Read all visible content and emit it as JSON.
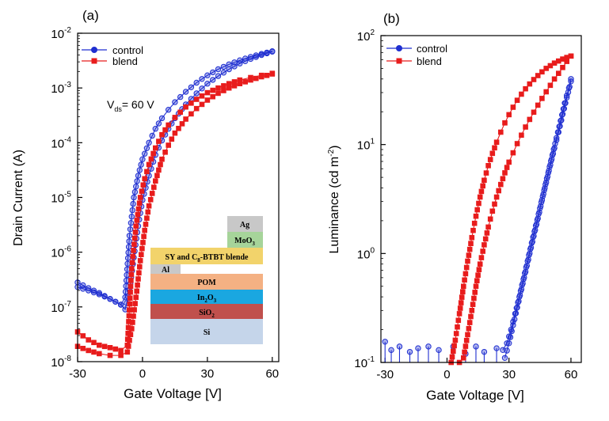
{
  "chart_data": [
    {
      "panel_label": "(a)",
      "type": "scatter",
      "xlabel": "Gate Voltage [V]",
      "ylabel": "Drain Current (A)",
      "x_ticks": [
        "-30",
        "0",
        "30",
        "60"
      ],
      "y_ticks": [
        {
          "base": "10",
          "exp": "-8"
        },
        {
          "base": "10",
          "exp": "-7"
        },
        {
          "base": "10",
          "exp": "-6"
        },
        {
          "base": "10",
          "exp": "-5"
        },
        {
          "base": "10",
          "exp": "-4"
        },
        {
          "base": "10",
          "exp": "-3"
        },
        {
          "base": "10",
          "exp": "-2"
        }
      ],
      "xlim": [
        -30,
        63
      ],
      "ylim": [
        1e-08,
        0.01
      ],
      "yscale": "log",
      "grid": false,
      "legend_position": "top-left",
      "annotation": {
        "prefix": "V",
        "sub": "ds",
        "suffix": "= 60 V"
      },
      "inset_layers": [
        {
          "label": "Ag",
          "color": "#c8c8c8"
        },
        {
          "label": "MoO3",
          "label_main": "MoO",
          "label_sub": "3",
          "color": "#a6d49a"
        },
        {
          "label": "SY and C8-BTBT blende",
          "label_main": "SY and C",
          "label_sub": "8",
          "label_tail": "-BTBT blende",
          "color": "#f2d36b"
        },
        {
          "label": "Al",
          "color": "#c8c8c8"
        },
        {
          "label": "POM",
          "color": "#f4b183"
        },
        {
          "label": "In2O3",
          "label_main": "In",
          "label_sub": "2",
          "label_tail": "O",
          "label_sub2": "3",
          "color": "#1aa7e0"
        },
        {
          "label": "SiO2",
          "label_main": "SiO",
          "label_sub": "2",
          "color": "#c0504d"
        },
        {
          "label": "Si",
          "color": "#c5d5ea"
        }
      ],
      "series": [
        {
          "name": "control",
          "color": "#1f2fd0",
          "marker": "circle",
          "forward": {
            "x": [
              -30,
              -25,
              -20,
              -15,
              -10,
              -8,
              -6,
              -4,
              -2,
              0,
              3,
              6,
              9,
              12,
              15,
              20,
              25,
              30,
              35,
              40,
              45,
              50,
              55,
              60
            ],
            "y": [
              2.8e-07,
              2.2e-07,
              1.8e-07,
              1.4e-07,
              1.1e-07,
              1.5e-07,
              2e-06,
              1e-05,
              2.5e-05,
              5e-05,
              0.0001,
              0.00018,
              0.00028,
              0.0004,
              0.00055,
              0.00085,
              0.00125,
              0.0017,
              0.0022,
              0.0027,
              0.0032,
              0.0037,
              0.0042,
              0.0047
            ]
          },
          "reverse": {
            "x": [
              60,
              55,
              50,
              45,
              40,
              35,
              30,
              25,
              20,
              15,
              12,
              9,
              6,
              3,
              0,
              -2,
              -4,
              -6,
              -8,
              -10,
              -15,
              -20,
              -25,
              -30
            ],
            "y": [
              0.0046,
              0.004,
              0.0034,
              0.0028,
              0.0022,
              0.00165,
              0.0012,
              0.0008,
              0.0005,
              0.00028,
              0.00018,
              0.00011,
              6e-05,
              2.5e-05,
              9e-06,
              3e-06,
              8e-07,
              2e-07,
              9e-08,
              1.1e-07,
              1.4e-07,
              1.7e-07,
              2e-07,
              2.3e-07
            ]
          }
        },
        {
          "name": "blend",
          "color": "#e81c1c",
          "marker": "square",
          "forward": {
            "x": [
              -30,
              -25,
              -20,
              -15,
              -10,
              -7,
              -5,
              -3,
              -1,
              1,
              3,
              6,
              9,
              12,
              15,
              20,
              25,
              30,
              35,
              40,
              45,
              50,
              55,
              60
            ],
            "y": [
              3.5e-08,
              2.5e-08,
              2e-08,
              1.8e-08,
              1.6e-08,
              2e-08,
              5e-07,
              3e-06,
              1e-05,
              2.2e-05,
              4e-05,
              8e-05,
              0.00014,
              0.00021,
              0.00029,
              0.00045,
              0.00062,
              0.00082,
              0.001,
              0.0012,
              0.0014,
              0.00155,
              0.0017,
              0.00185
            ]
          },
          "reverse": {
            "x": [
              60,
              55,
              50,
              45,
              40,
              35,
              30,
              25,
              20,
              15,
              12,
              9,
              6,
              3,
              1,
              -1,
              -3,
              -5,
              -7,
              -10,
              -15,
              -20,
              -25,
              -30
            ],
            "y": [
              0.0018,
              0.0016,
              0.0014,
              0.0012,
              0.001,
              0.0008,
              0.0006,
              0.00042,
              0.00027,
              0.00015,
              9e-05,
              5e-05,
              2e-05,
              7e-06,
              2.5e-06,
              7e-07,
              1.5e-07,
              4e-08,
              1.5e-08,
              1.3e-08,
              1.3e-08,
              1.4e-08,
              1.6e-08,
              1.9e-08
            ]
          }
        }
      ]
    },
    {
      "panel_label": "(b)",
      "type": "scatter",
      "xlabel": "Gate Voltage [V]",
      "ylabel_main": "Luminance (cd m",
      "ylabel_sup": "-2",
      "ylabel_tail": ")",
      "x_ticks": [
        "-30",
        "0",
        "30",
        "60"
      ],
      "y_ticks": [
        {
          "base": "10",
          "exp": "-1"
        },
        {
          "base": "10",
          "exp": "0"
        },
        {
          "base": "10",
          "exp": "1"
        },
        {
          "base": "10",
          "exp": "2"
        }
      ],
      "xlim": [
        -32,
        65
      ],
      "ylim": [
        0.1,
        100
      ],
      "yscale": "log",
      "grid": false,
      "legend_position": "top-left",
      "noise_floor": 0.1,
      "series": [
        {
          "name": "control",
          "color": "#1f2fd0",
          "marker": "circle",
          "noise": {
            "x": [
              -30,
              -27,
              -23,
              -18,
              -14,
              -9,
              -4,
              3,
              9,
              14,
              18,
              24
            ],
            "y": [
              0.155,
              0.13,
              0.14,
              0.125,
              0.135,
              0.14,
              0.13,
              0.14,
              0.12,
              0.14,
              0.125,
              0.135
            ]
          },
          "forward": {
            "x": [
              27,
              29,
              31,
              33,
              35,
              37,
              39,
              41,
              43,
              45,
              47,
              49,
              51,
              53,
              55,
              57,
              59,
              60
            ],
            "y": [
              0.13,
              0.15,
              0.2,
              0.28,
              0.4,
              0.58,
              0.85,
              1.25,
              1.8,
              2.6,
              3.8,
              5.5,
              8,
              11.5,
              16.5,
              24,
              33,
              40
            ]
          },
          "reverse": {
            "x": [
              60,
              58,
              56,
              54,
              52,
              50,
              48,
              46,
              44,
              42,
              40,
              38,
              36,
              34,
              32,
              30,
              28
            ],
            "y": [
              38,
              27,
              19,
              13,
              9.3,
              6.5,
              4.5,
              3.1,
              2.1,
              1.45,
              1,
              0.68,
              0.47,
              0.32,
              0.22,
              0.15,
              0.11
            ]
          }
        },
        {
          "name": "blend",
          "color": "#e81c1c",
          "marker": "square",
          "forward": {
            "x": [
              2,
              4,
              6,
              8,
              10,
              12,
              14,
              16,
              18,
              20,
              22,
              24,
              26,
              28,
              30,
              32,
              34,
              36,
              38,
              40,
              42,
              44,
              46,
              48,
              50,
              52,
              54,
              56,
              58,
              60
            ],
            "y": [
              0.1,
              0.16,
              0.28,
              0.5,
              0.85,
              1.4,
              2.2,
              3.3,
              4.7,
              6.4,
              8.3,
              10.5,
              13,
              15.8,
              18.8,
              22,
              25.5,
              29,
              32.5,
              36,
              39.5,
              43,
              46.5,
              50,
              53,
              56,
              58.5,
              61,
              63,
              65
            ]
          },
          "reverse": {
            "x": [
              60,
              58,
              56,
              54,
              52,
              50,
              48,
              46,
              44,
              42,
              40,
              38,
              36,
              34,
              32,
              30,
              28,
              26,
              24,
              22,
              20,
              18,
              16,
              14,
              12,
              10,
              8,
              6
            ],
            "y": [
              65,
              58,
              51,
              45,
              40,
              35,
              30.5,
              26.5,
              23,
              19.8,
              17,
              14.5,
              12.2,
              10.2,
              8.4,
              6.9,
              5.5,
              4.3,
              3.3,
              2.45,
              1.75,
              1.2,
              0.8,
              0.5,
              0.3,
              0.18,
              0.11,
              0.1
            ]
          }
        }
      ]
    }
  ]
}
